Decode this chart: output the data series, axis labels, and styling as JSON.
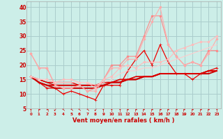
{
  "x": [
    0,
    1,
    2,
    3,
    4,
    5,
    6,
    7,
    8,
    9,
    10,
    11,
    12,
    13,
    14,
    15,
    16,
    17,
    18,
    19,
    20,
    21,
    22,
    23
  ],
  "series": [
    {
      "y": [
        16,
        14,
        12,
        12,
        10,
        11,
        10,
        9,
        8,
        13,
        13,
        13,
        18,
        22,
        25,
        20,
        27,
        21,
        17,
        17,
        15,
        17,
        18,
        19
      ],
      "color": "#ee0000",
      "marker": "+",
      "lw": 0.9,
      "ms": 3.5
    },
    {
      "y": [
        16,
        14,
        13,
        12,
        12,
        12,
        12,
        12,
        12,
        13,
        14,
        14,
        15,
        15,
        16,
        16,
        17,
        17,
        17,
        17,
        17,
        17,
        17,
        18
      ],
      "color": "#cc0000",
      "marker": null,
      "lw": 1.4,
      "ms": 0
    },
    {
      "y": [
        16,
        14,
        13,
        13,
        13,
        13,
        13,
        13,
        13,
        13,
        14,
        14,
        15,
        15,
        16,
        16,
        17,
        17,
        17,
        17,
        17,
        17,
        18,
        18
      ],
      "color": "#cc0000",
      "marker": null,
      "lw": 1.4,
      "ms": 0
    },
    {
      "y": [
        16,
        15,
        14,
        13,
        13,
        13,
        13,
        13,
        13,
        14,
        14,
        15,
        15,
        16,
        16,
        16,
        17,
        17,
        17,
        17,
        17,
        17,
        18,
        18
      ],
      "color": "#dd0000",
      "marker": null,
      "lw": 1.0,
      "ms": 0
    },
    {
      "y": [
        16,
        15,
        14,
        14,
        14,
        14,
        13,
        13,
        13,
        14,
        14,
        15,
        15,
        16,
        16,
        16,
        17,
        17,
        17,
        17,
        17,
        17,
        18,
        18
      ],
      "color": "#dd0000",
      "marker": null,
      "lw": 1.0,
      "ms": 0
    },
    {
      "y": [
        24,
        19,
        19,
        13,
        12,
        12,
        13,
        11,
        12,
        15,
        20,
        20,
        23,
        23,
        30,
        37,
        37,
        27,
        23,
        20,
        21,
        20,
        25,
        25
      ],
      "color": "#ff8888",
      "marker": "o",
      "lw": 0.8,
      "ms": 2.0
    },
    {
      "y": [
        24,
        19,
        19,
        13,
        12,
        12,
        13,
        11,
        11,
        15,
        19,
        19,
        22,
        22,
        29,
        35,
        40,
        27,
        23,
        20,
        21,
        20,
        24,
        29
      ],
      "color": "#ffaaaa",
      "marker": "o",
      "lw": 0.8,
      "ms": 2.0
    },
    {
      "y": [
        16,
        15,
        15,
        14,
        15,
        15,
        14,
        14,
        12,
        15,
        16,
        19,
        20,
        19,
        21,
        21,
        21,
        22,
        25,
        26,
        27,
        28,
        28,
        30
      ],
      "color": "#ffbbbb",
      "marker": "o",
      "lw": 0.8,
      "ms": 2.0
    },
    {
      "y": [
        16,
        15,
        15,
        14,
        14,
        14,
        14,
        14,
        13,
        14,
        15,
        17,
        18,
        18,
        19,
        19,
        20,
        21,
        22,
        23,
        24,
        25,
        26,
        27
      ],
      "color": "#ffcccc",
      "marker": null,
      "lw": 0.8,
      "ms": 0
    }
  ],
  "ylim": [
    5,
    42
  ],
  "yticks": [
    5,
    10,
    15,
    20,
    25,
    30,
    35,
    40
  ],
  "xlim": [
    -0.5,
    23.5
  ],
  "xlabel": "Vent moyen/en rafales ( km/h )",
  "bg_color": "#cceee8",
  "grid_color": "#aacccc",
  "wind_arrows": [
    "↑",
    "↱",
    "↰",
    "↙",
    "↖",
    "↖",
    "↖",
    "↖",
    "↙",
    "↑",
    "↑",
    "↑",
    "↱",
    "↱",
    "↱",
    "↱",
    "↱",
    "↱",
    "↱",
    "↱",
    "↱",
    "↱",
    "↱",
    "↑"
  ]
}
